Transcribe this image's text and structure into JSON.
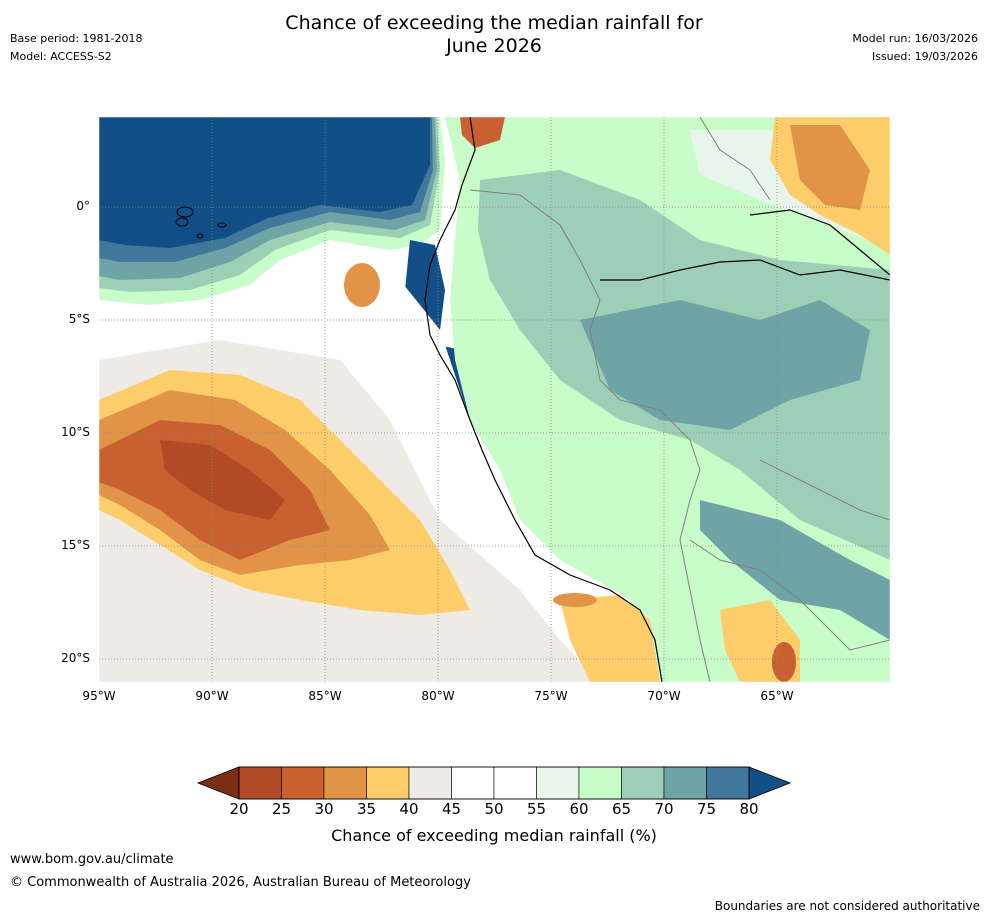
{
  "header": {
    "title_line1": "Chance of exceeding the median rainfall for",
    "title_line2": "June 2026",
    "base_period": "Base period: 1981-2018",
    "model": "Model: ACCESS-S2",
    "model_run": "Model run: 16/03/2026",
    "issued": "Issued: 19/03/2026"
  },
  "map": {
    "lat_labels": [
      "0°",
      "5°S",
      "10°S",
      "15°S",
      "20°S"
    ],
    "lon_labels": [
      "95°W",
      "90°W",
      "85°W",
      "80°W",
      "75°W",
      "70°W",
      "65°W"
    ],
    "lat_values": [
      0,
      -5,
      -10,
      -15,
      -20
    ],
    "lon_values": [
      -95,
      -90,
      -85,
      -80,
      -75,
      -70,
      -65
    ],
    "extent": {
      "lon_min": -95,
      "lon_max": -60,
      "lat_min": -21,
      "lat_max": 4
    }
  },
  "colorbar": {
    "title": "Chance of exceeding median rainfall (%)",
    "ticks": [
      "20",
      "25",
      "30",
      "35",
      "40",
      "45",
      "50",
      "55",
      "60",
      "65",
      "70",
      "75",
      "80"
    ],
    "colors": [
      "#7a2e14",
      "#b24a27",
      "#c8612f",
      "#e19447",
      "#fdcd6a",
      "#eeebe6",
      "#ffffff",
      "#ffffff",
      "#e8f5ea",
      "#c8fcc9",
      "#9dcfb7",
      "#6fa4a6",
      "#41779b",
      "#134f87"
    ]
  },
  "footer": {
    "url": "www.bom.gov.au/climate",
    "copyright": "© Commonwealth of Australia 2026, Australian Bureau of Meteorology",
    "disclaimer": "Boundaries are not considered authoritative"
  }
}
